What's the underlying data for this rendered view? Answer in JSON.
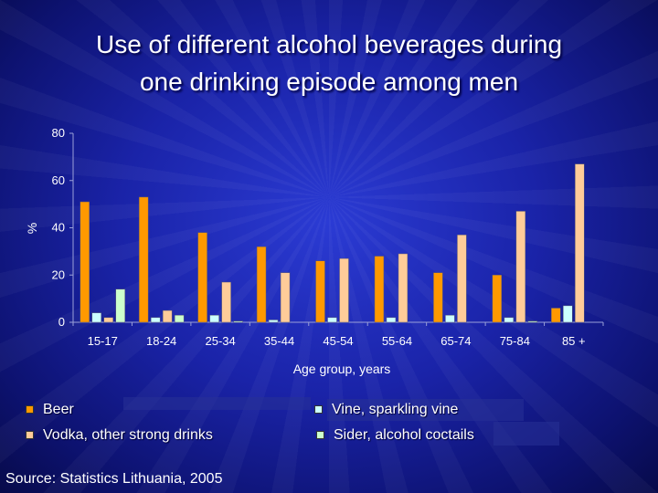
{
  "title_line1": "Use of different alcohol beverages during",
  "title_line2": "one drinking episode among men",
  "source": "Source: Statistics Lithuania, 2005",
  "colors": {
    "beer": "#ff9900",
    "vine": "#ccffff",
    "vodka": "#ffcc99",
    "sider": "#ccffcc"
  },
  "chart_data": {
    "type": "bar",
    "title": "Use of different alcohol beverages during one drinking episode among men",
    "xlabel": "Age group, years",
    "ylabel": "%",
    "ylim": [
      0,
      80
    ],
    "yticks": [
      0,
      20,
      40,
      60,
      80
    ],
    "grid": false,
    "legend_position": "bottom",
    "categories": [
      "15-17",
      "18-24",
      "25-34",
      "35-44",
      "45-54",
      "55-64",
      "65-74",
      "75-84",
      "85 +"
    ],
    "series": [
      {
        "name": "Beer",
        "color": "#ff9900",
        "values": [
          51,
          53,
          38,
          32,
          26,
          28,
          21,
          20,
          6
        ]
      },
      {
        "name": "Vine, sparkling vine",
        "color": "#ccffff",
        "values": [
          4,
          2,
          3,
          1,
          2,
          2,
          3,
          2,
          7
        ]
      },
      {
        "name": "Vodka, other strong drinks",
        "color": "#ffcc99",
        "values": [
          2,
          5,
          17,
          21,
          27,
          29,
          37,
          47,
          67
        ]
      },
      {
        "name": "Sider, alcohol coctails",
        "color": "#ccffcc",
        "values": [
          14,
          3,
          0.5,
          0,
          0,
          0,
          0,
          0.5,
          0
        ]
      }
    ]
  }
}
